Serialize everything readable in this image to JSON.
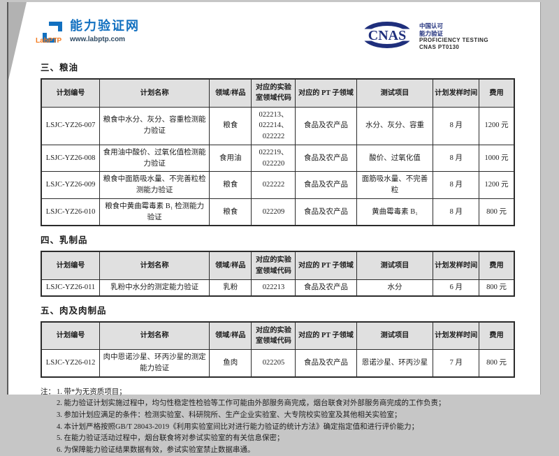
{
  "header": {
    "logo": {
      "brand": "LabPTP",
      "site_name": "能力验证网",
      "site_url": "www.labptp.com"
    },
    "cnas": {
      "emblem": "CNAS",
      "accreditation_line1": "中国认可",
      "accreditation_line2": "能力验证",
      "subtitle": "PROFICIENCY TESTING",
      "code": "CNAS PT0130"
    }
  },
  "table": {
    "columns": [
      "计划编号",
      "计划名称",
      "领域/样品",
      "对应的实验室领域代码",
      "对应的 PT 子领域",
      "测试项目",
      "计划发样时间",
      "费用"
    ]
  },
  "sections": [
    {
      "heading": "三、粮油",
      "rows": [
        {
          "plan_id": "LSJC-YZ26-007",
          "plan_name": "粮食中水分、灰分、容重检测能力验证",
          "sample": "粮食",
          "lab_code": "022213、022214、022222",
          "pt_subfield": "食品及农产品",
          "test_items": "水分、灰分、容重",
          "sampling_time": "8 月",
          "fee": "1200 元"
        },
        {
          "plan_id": "LSJC-YZ26-008",
          "plan_name": "食用油中酸价、过氧化值检测能力验证",
          "sample": "食用油",
          "lab_code": "022219、022220",
          "pt_subfield": "食品及农产品",
          "test_items": "酸价、过氧化值",
          "sampling_time": "8 月",
          "fee": "1000 元"
        },
        {
          "plan_id": "LSJC-YZ26-009",
          "plan_name": "粮食中面筋吸水量、不完善粒检测能力验证",
          "sample": "粮食",
          "lab_code": "022222",
          "pt_subfield": "食品及农产品",
          "test_items": "面筋吸水量、不完善粒",
          "sampling_time": "8 月",
          "fee": "1200 元"
        },
        {
          "plan_id": "LSJC-YZ26-010",
          "plan_name": "粮食中黄曲霉毒素 B₁ 检测能力验证",
          "sample": "粮食",
          "lab_code": "022209",
          "pt_subfield": "食品及农产品",
          "test_items": "黄曲霉毒素 B₁",
          "sampling_time": "8 月",
          "fee": "800 元"
        }
      ]
    },
    {
      "heading": "四、乳制品",
      "rows": [
        {
          "plan_id": "LSJC-YZ26-011",
          "plan_name": "乳粉中水分的测定能力验证",
          "sample": "乳粉",
          "lab_code": "022213",
          "pt_subfield": "食品及农产品",
          "test_items": "水分",
          "sampling_time": "6 月",
          "fee": "800 元"
        }
      ]
    },
    {
      "heading": "五、肉及肉制品",
      "rows": [
        {
          "plan_id": "LSJC-YZ26-012",
          "plan_name": "肉中恩诺沙星、环丙沙星的测定能力验证",
          "sample": "鱼肉",
          "lab_code": "022205",
          "pt_subfield": "食品及农产品",
          "test_items": "恩诺沙星、环丙沙星",
          "sampling_time": "7 月",
          "fee": "800 元"
        }
      ]
    }
  ],
  "notes": {
    "label": "注：",
    "items": [
      "1. 带*为无资质项目；",
      "2. 能力验证计划实施过程中，均匀性稳定性检验等工作可能由外部服务商完成，烟台联食对外部服务商完成的工作负责；",
      "3. 参加计划应满足的条件：检测实验室、科研院所、生产企业实验室、大专院校实验室及其他相关实验室；",
      "4. 本计划严格按照GB/T 28043-2019《利用实验室间比对进行能力验证的统计方法》确定指定值和进行评价能力；",
      "5. 在能力验证活动过程中，烟台联食将对参试实验室的有关信息保密；",
      "6. 为保障能力验证结果数据有效，参试实验室禁止数据串通。"
    ]
  },
  "colors": {
    "brand_blue": "#1270c0",
    "brand_orange": "#f47b20",
    "cnas_navy": "#1f2f7c",
    "table_header_bg": "#e0e0e0",
    "page_edge_gray": "#c6c6c6"
  }
}
